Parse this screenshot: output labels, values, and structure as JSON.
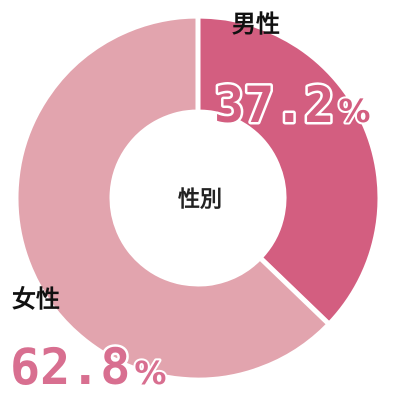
{
  "chart_data": {
    "type": "pie",
    "variant": "donut",
    "center_label": "性別",
    "slices": [
      {
        "label": "男性",
        "value": 37.2,
        "value_text": "37.2",
        "unit": "%",
        "color": "#d35e80",
        "label_color": "#d35e80"
      },
      {
        "label": "女性",
        "value": 62.8,
        "value_text": "62.8",
        "unit": "%",
        "color": "#e2a4ae",
        "label_color": "#d86f90"
      }
    ]
  }
}
